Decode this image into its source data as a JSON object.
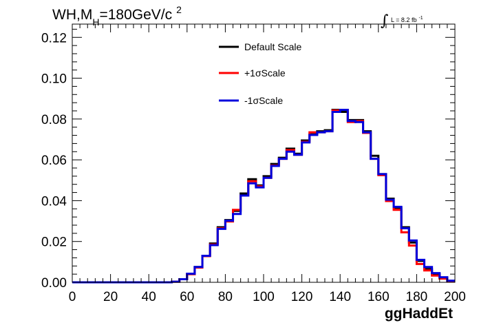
{
  "title": {
    "main_prefix": "WH,M",
    "subscript": "H",
    "main_suffix": "=180GeV/c",
    "superscript": "2"
  },
  "luminosity": {
    "symbol": "∫",
    "text": "L = 8.2 fb",
    "exponent": "-1"
  },
  "chart_data": {
    "type": "line",
    "style": "histogram-step",
    "xlabel": "ggHaddEt",
    "ylabel": "",
    "xlim": [
      0,
      200
    ],
    "ylim": [
      0,
      0.1265
    ],
    "x_ticks": [
      0,
      20,
      40,
      60,
      80,
      100,
      120,
      140,
      160,
      180,
      200
    ],
    "x_tick_labels": [
      "0",
      "20",
      "40",
      "60",
      "80",
      "100",
      "120",
      "140",
      "160",
      "180",
      "200"
    ],
    "y_ticks": [
      0,
      0.02,
      0.04,
      0.06,
      0.08,
      0.1,
      0.12
    ],
    "y_tick_labels": [
      "0.00",
      "0.02",
      "0.04",
      "0.06",
      "0.08",
      "0.10",
      "0.12"
    ],
    "bin_edges": [
      0,
      4,
      8,
      12,
      16,
      20,
      24,
      28,
      32,
      36,
      40,
      44,
      48,
      52,
      56,
      60,
      64,
      68,
      72,
      76,
      80,
      84,
      88,
      92,
      96,
      100,
      104,
      108,
      112,
      116,
      120,
      124,
      128,
      132,
      136,
      140,
      144,
      148,
      152,
      156,
      160,
      164,
      168,
      172,
      176,
      180,
      184,
      188,
      192,
      196,
      200
    ],
    "series": [
      {
        "name": "Default Scale",
        "color": "#000000",
        "values": [
          0,
          0,
          0,
          0,
          0,
          0,
          0,
          0,
          0,
          0,
          0,
          0,
          0,
          0.0003,
          0.0015,
          0.004,
          0.0075,
          0.013,
          0.019,
          0.027,
          0.0305,
          0.035,
          0.0435,
          0.0505,
          0.0475,
          0.052,
          0.058,
          0.061,
          0.0655,
          0.063,
          0.0695,
          0.0725,
          0.074,
          0.0745,
          0.0845,
          0.0835,
          0.0795,
          0.0795,
          0.074,
          0.062,
          0.053,
          0.041,
          0.0365,
          0.027,
          0.0195,
          0.0105,
          0.0065,
          0.004,
          0.002,
          0.0005
        ]
      },
      {
        "name": "+1σScale",
        "color": "#ff0000",
        "values": [
          0,
          0,
          0,
          0,
          0,
          0,
          0,
          0,
          0,
          0,
          0,
          0,
          0,
          0.0003,
          0.0015,
          0.004,
          0.0072,
          0.0128,
          0.0185,
          0.0265,
          0.0298,
          0.0355,
          0.0425,
          0.0495,
          0.047,
          0.0512,
          0.0572,
          0.0605,
          0.0648,
          0.0625,
          0.0688,
          0.0735,
          0.0735,
          0.074,
          0.0842,
          0.0845,
          0.0785,
          0.079,
          0.0732,
          0.0605,
          0.0525,
          0.0398,
          0.0355,
          0.0245,
          0.018,
          0.009,
          0.0058,
          0.0033,
          0.0018,
          0.0005
        ]
      },
      {
        "name": "-1σScale",
        "color": "#0000dd",
        "values": [
          0,
          0,
          0,
          0,
          0,
          0,
          0,
          0,
          0,
          0,
          0,
          0,
          0,
          0.0003,
          0.0015,
          0.0042,
          0.0075,
          0.013,
          0.0182,
          0.0262,
          0.0302,
          0.0335,
          0.0425,
          0.0485,
          0.0465,
          0.0512,
          0.057,
          0.0605,
          0.064,
          0.0625,
          0.0685,
          0.0722,
          0.0735,
          0.074,
          0.0835,
          0.0845,
          0.079,
          0.0785,
          0.0735,
          0.0605,
          0.053,
          0.0405,
          0.037,
          0.0265,
          0.0205,
          0.011,
          0.0075,
          0.0045,
          0.0025,
          0.0008
        ]
      }
    ]
  }
}
